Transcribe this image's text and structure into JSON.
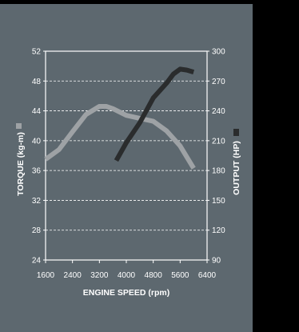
{
  "chart_data": {
    "type": "line",
    "xlabel": "ENGINE SPEED (rpm)",
    "ylabel_left": "TORQUE (kg-m)",
    "ylabel_right": "OUTPUT (HP)",
    "x_ticks": [
      "1600",
      "2400",
      "3200",
      "4000",
      "4800",
      "5600",
      "6400"
    ],
    "y_left_ticks": [
      "24",
      "28",
      "32",
      "36",
      "40",
      "44",
      "48",
      "52"
    ],
    "y_right_ticks": [
      "90",
      "120",
      "150",
      "180",
      "210",
      "240",
      "270",
      "300"
    ],
    "xlim": [
      1600,
      6400
    ],
    "ylim_left": [
      24,
      52
    ],
    "ylim_right": [
      90,
      300
    ],
    "grid": "horizontal dashed",
    "series": [
      {
        "name": "TORQUE (kg-m)",
        "axis": "left",
        "color": "#9ea2a5",
        "x": [
          1600,
          2000,
          2400,
          2800,
          3200,
          3400,
          3600,
          4000,
          4400,
          4800,
          5200,
          5600,
          6000
        ],
        "y": [
          37.5,
          38.8,
          41.2,
          43.5,
          44.6,
          44.6,
          44.3,
          43.4,
          43.0,
          42.6,
          41.3,
          39.3,
          36.3
        ]
      },
      {
        "name": "OUTPUT (HP)",
        "axis": "right",
        "color": "#2a2c2d",
        "x": [
          3700,
          4000,
          4400,
          4800,
          5200,
          5400,
          5600,
          5800,
          6000
        ],
        "y": [
          190,
          208,
          228,
          253,
          268,
          277,
          282,
          281,
          279
        ]
      }
    ]
  }
}
